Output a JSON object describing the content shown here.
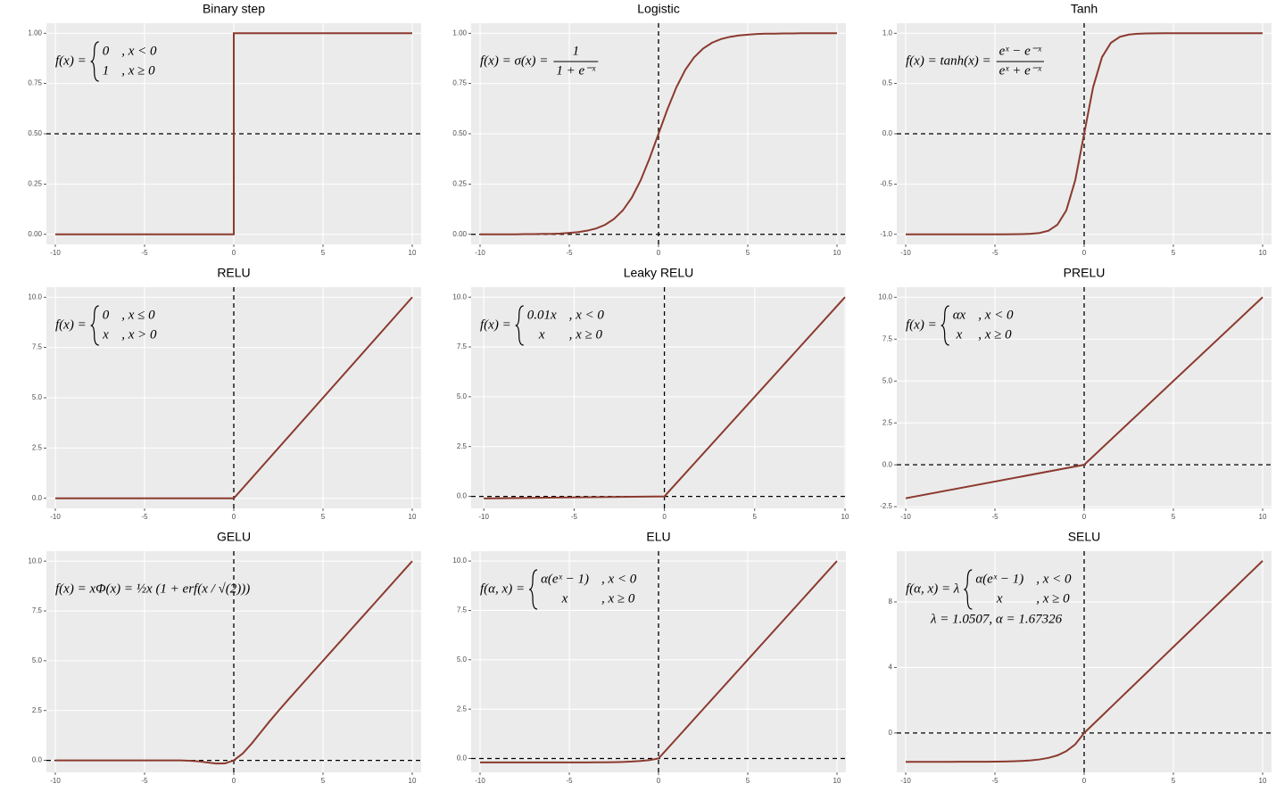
{
  "chart_data": [
    {
      "type": "line",
      "title": "Binary step",
      "color": "#8b3a2f",
      "xlim": [
        -10.5,
        10.5
      ],
      "ylim": [
        -0.05,
        1.05
      ],
      "xticks": [
        -10,
        -5,
        0,
        5,
        10
      ],
      "yticks": [
        {
          "value": 0,
          "label": "0.00"
        },
        {
          "value": 0.25,
          "label": "0.25"
        },
        {
          "value": 0.5,
          "label": "0.50"
        },
        {
          "value": 0.75,
          "label": "0.75"
        },
        {
          "value": 1,
          "label": "1.00"
        }
      ],
      "hlines": [
        0.5
      ],
      "vlines": [],
      "x": [
        -10,
        0,
        0,
        10
      ],
      "values": [
        0,
        0,
        1,
        1
      ],
      "annotation": {
        "lhs": "f(x) =",
        "cases": [
          [
            "0",
            ", x < 0"
          ],
          [
            "1",
            ", x ≥ 0"
          ]
        ]
      }
    },
    {
      "type": "line",
      "title": "Logistic",
      "color": "#8b3a2f",
      "xlim": [
        -10.5,
        10.5
      ],
      "ylim": [
        -0.05,
        1.05
      ],
      "xticks": [
        -10,
        -5,
        0,
        5,
        10
      ],
      "yticks": [
        {
          "value": 0,
          "label": "0.00"
        },
        {
          "value": 0.25,
          "label": "0.25"
        },
        {
          "value": 0.5,
          "label": "0.50"
        },
        {
          "value": 0.75,
          "label": "0.75"
        },
        {
          "value": 1,
          "label": "1.00"
        }
      ],
      "hlines": [
        0
      ],
      "vlines": [
        0
      ],
      "x": [
        -10,
        -9.5,
        -9,
        -8.5,
        -8,
        -7.5,
        -7,
        -6.5,
        -6,
        -5.5,
        -5,
        -4.5,
        -4,
        -3.5,
        -3,
        -2.5,
        -2,
        -1.5,
        -1,
        -0.5,
        0,
        0.5,
        1,
        1.5,
        2,
        2.5,
        3,
        3.5,
        4,
        4.5,
        5,
        5.5,
        6,
        6.5,
        7,
        7.5,
        8,
        8.5,
        9,
        9.5,
        10
      ],
      "values": [
        0,
        0,
        0,
        0,
        0,
        0.001,
        0.001,
        0.002,
        0.002,
        0.004,
        0.007,
        0.011,
        0.018,
        0.029,
        0.047,
        0.076,
        0.119,
        0.182,
        0.269,
        0.378,
        0.5,
        0.622,
        0.731,
        0.818,
        0.881,
        0.924,
        0.953,
        0.971,
        0.982,
        0.989,
        0.993,
        0.996,
        0.998,
        0.998,
        0.999,
        0.999,
        1,
        1,
        1,
        1,
        1
      ],
      "annotation": {
        "lhs": "f(x) = σ(x) =",
        "fraction": {
          "numerator": "1",
          "denominator": "1 + e⁻ˣ"
        }
      }
    },
    {
      "type": "line",
      "title": "Tanh",
      "color": "#8b3a2f",
      "xlim": [
        -10.5,
        10.5
      ],
      "ylim": [
        -1.1,
        1.1
      ],
      "xticks": [
        -10,
        -5,
        0,
        5,
        10
      ],
      "yticks": [
        {
          "value": -1,
          "label": "-1.0"
        },
        -0.5,
        {
          "value": 0,
          "label": "0.0"
        },
        0.5,
        {
          "value": 1,
          "label": "1.0"
        }
      ],
      "hlines": [
        0
      ],
      "vlines": [
        0
      ],
      "x": [
        -10,
        -9.5,
        -9,
        -8.5,
        -8,
        -7.5,
        -7,
        -6.5,
        -6,
        -5.5,
        -5,
        -4.5,
        -4,
        -3.5,
        -3,
        -2.5,
        -2,
        -1.5,
        -1,
        -0.5,
        0,
        0.5,
        1,
        1.5,
        2,
        2.5,
        3,
        3.5,
        4,
        4.5,
        5,
        5.5,
        6,
        6.5,
        7,
        7.5,
        8,
        8.5,
        9,
        9.5,
        10
      ],
      "values": [
        -1,
        -1,
        -1,
        -1,
        -1,
        -1,
        -1,
        -1,
        -1,
        -1,
        -1,
        -1,
        -0.999,
        -0.998,
        -0.995,
        -0.987,
        -0.964,
        -0.905,
        -0.762,
        -0.462,
        0,
        0.462,
        0.762,
        0.905,
        0.964,
        0.987,
        0.995,
        0.998,
        0.999,
        1,
        1,
        1,
        1,
        1,
        1,
        1,
        1,
        1,
        1,
        1,
        1
      ],
      "annotation": {
        "lhs": "f(x) = tanh(x) =",
        "fraction": {
          "numerator": "eˣ − e⁻ˣ",
          "denominator": "eˣ + e⁻ˣ"
        }
      }
    },
    {
      "type": "line",
      "title": "RELU",
      "color": "#8b3a2f",
      "xlim": [
        -10.5,
        10.5
      ],
      "ylim": [
        -0.5,
        10.5
      ],
      "xticks": [
        -10,
        -5,
        0,
        5,
        10
      ],
      "yticks": [
        {
          "value": 0,
          "label": "0.0"
        },
        2.5,
        {
          "value": 5,
          "label": "5.0"
        },
        7.5,
        {
          "value": 10,
          "label": "10.0"
        }
      ],
      "hlines": [],
      "vlines": [
        0
      ],
      "x": [
        -10,
        0,
        10
      ],
      "values": [
        0,
        0,
        10
      ],
      "annotation": {
        "lhs": "f(x) =",
        "cases": [
          [
            "0",
            ", x ≤ 0"
          ],
          [
            "x",
            ", x > 0"
          ]
        ]
      }
    },
    {
      "type": "line",
      "title": "Leaky RELU",
      "color": "#8b3a2f",
      "xlim": [
        -10.7,
        10.05
      ],
      "ylim": [
        -0.6,
        10.5
      ],
      "xticks": [
        -10,
        -5,
        0,
        5,
        10
      ],
      "yticks": [
        {
          "value": 0,
          "label": "0.0"
        },
        2.5,
        {
          "value": 5,
          "label": "5.0"
        },
        7.5,
        {
          "value": 10,
          "label": "10.0"
        }
      ],
      "hlines": [
        0
      ],
      "vlines": [
        0
      ],
      "x": [
        -10,
        0,
        10
      ],
      "values": [
        -0.1,
        0,
        10
      ],
      "annotation": {
        "lhs": "f(x) =",
        "cases": [
          [
            "0.01x",
            ", x < 0"
          ],
          [
            "x",
            ", x ≥ 0"
          ]
        ]
      }
    },
    {
      "type": "line",
      "title": "PRELU",
      "color": "#8b3a2f",
      "xlim": [
        -10.5,
        10.5
      ],
      "ylim": [
        -2.6,
        10.6
      ],
      "xticks": [
        -10,
        -5,
        0,
        5,
        10
      ],
      "yticks": [
        -2.5,
        {
          "value": 0,
          "label": "0.0"
        },
        2.5,
        {
          "value": 5,
          "label": "5.0"
        },
        7.5,
        {
          "value": 10,
          "label": "10.0"
        }
      ],
      "hlines": [
        0
      ],
      "vlines": [
        0
      ],
      "x": [
        -10,
        0,
        10
      ],
      "values": [
        -2,
        0,
        10
      ],
      "annotation": {
        "lhs": "f(x) =",
        "cases": [
          [
            "αx",
            ", x < 0"
          ],
          [
            "x",
            ", x ≥ 0"
          ]
        ]
      }
    },
    {
      "type": "line",
      "title": "GELU",
      "color": "#8b3a2f",
      "xlim": [
        -10.5,
        10.5
      ],
      "ylim": [
        -0.6,
        10.5
      ],
      "xticks": [
        -10,
        -5,
        0,
        5,
        10
      ],
      "yticks": [
        {
          "value": 0,
          "label": "0.0"
        },
        2.5,
        {
          "value": 5,
          "label": "5.0"
        },
        7.5,
        {
          "value": 10,
          "label": "10.0"
        }
      ],
      "hlines": [
        0
      ],
      "vlines": [
        0
      ],
      "x": [
        -10,
        -9.5,
        -9,
        -8.5,
        -8,
        -7.5,
        -7,
        -6.5,
        -6,
        -5.5,
        -5,
        -4.5,
        -4,
        -3.5,
        -3,
        -2.5,
        -2,
        -1.5,
        -1,
        -0.5,
        0,
        0.5,
        1,
        1.5,
        2,
        2.5,
        3,
        3.5,
        4,
        4.5,
        5,
        5.5,
        6,
        6.5,
        7,
        7.5,
        8,
        8.5,
        9,
        9.5,
        10
      ],
      "values": [
        0,
        0,
        0,
        0,
        0,
        0,
        0,
        0,
        0,
        0,
        0,
        0,
        0,
        -0.001,
        -0.004,
        -0.016,
        -0.046,
        -0.1,
        -0.159,
        -0.154,
        0,
        0.346,
        0.841,
        1.4,
        1.954,
        2.484,
        2.996,
        3.499,
        4,
        4.5,
        5,
        5.5,
        6,
        6.5,
        7,
        7.5,
        8,
        8.5,
        9,
        9.5,
        10
      ],
      "annotation": {
        "text": "f(x) = xΦ(x) = ½x (1 + erf(x / √(2)))"
      }
    },
    {
      "type": "line",
      "title": "ELU",
      "color": "#8b3a2f",
      "xlim": [
        -10.5,
        10.5
      ],
      "ylim": [
        -0.7,
        10.5
      ],
      "xticks": [
        -10,
        -5,
        0,
        5,
        10
      ],
      "yticks": [
        {
          "value": 0,
          "label": "0.0"
        },
        2.5,
        {
          "value": 5,
          "label": "5.0"
        },
        7.5,
        {
          "value": 10,
          "label": "10.0"
        }
      ],
      "hlines": [
        0
      ],
      "vlines": [
        0
      ],
      "x": [
        -10,
        -9.5,
        -9,
        -8.5,
        -8,
        -7.5,
        -7,
        -6.5,
        -6,
        -5.5,
        -5,
        -4.5,
        -4,
        -3.5,
        -3,
        -2.5,
        -2,
        -1.5,
        -1,
        -0.5,
        0,
        0.5,
        1,
        1.5,
        2,
        2.5,
        3,
        3.5,
        4,
        4.5,
        5,
        5.5,
        6,
        6.5,
        7,
        7.5,
        8,
        8.5,
        9,
        9.5,
        10
      ],
      "values": [
        -0.2,
        -0.2,
        -0.2,
        -0.2,
        -0.2,
        -0.2,
        -0.2,
        -0.2,
        -0.2,
        -0.199,
        -0.199,
        -0.198,
        -0.196,
        -0.194,
        -0.19,
        -0.184,
        -0.173,
        -0.155,
        -0.126,
        -0.079,
        0,
        0.5,
        1,
        1.5,
        2,
        2.5,
        3,
        3.5,
        4,
        4.5,
        5,
        5.5,
        6,
        6.5,
        7,
        7.5,
        8,
        8.5,
        9,
        9.5,
        10
      ],
      "annotation": {
        "lhs": "f(α, x) =",
        "cases": [
          [
            "α(eˣ − 1)",
            ", x < 0"
          ],
          [
            "x",
            ", x ≥ 0"
          ]
        ]
      }
    },
    {
      "type": "line",
      "title": "SELU",
      "color": "#8b3a2f",
      "xlim": [
        -10.5,
        10.5
      ],
      "ylim": [
        -2.4,
        11.1
      ],
      "xticks": [
        -10,
        -5,
        0,
        5,
        10
      ],
      "yticks": [
        0,
        4,
        8
      ],
      "hlines": [
        0
      ],
      "vlines": [
        0
      ],
      "x": [
        -10,
        -9.5,
        -9,
        -8.5,
        -8,
        -7.5,
        -7,
        -6.5,
        -6,
        -5.5,
        -5,
        -4.5,
        -4,
        -3.5,
        -3,
        -2.5,
        -2,
        -1.5,
        -1,
        -0.5,
        0,
        0.5,
        1,
        1.5,
        2,
        2.5,
        3,
        3.5,
        4,
        4.5,
        5,
        5.5,
        6,
        6.5,
        7,
        7.5,
        8,
        8.5,
        9,
        9.5,
        10
      ],
      "values": [
        -1.758,
        -1.758,
        -1.758,
        -1.758,
        -1.757,
        -1.757,
        -1.756,
        -1.755,
        -1.754,
        -1.751,
        -1.746,
        -1.739,
        -1.726,
        -1.705,
        -1.671,
        -1.614,
        -1.52,
        -1.366,
        -1.111,
        -0.692,
        0,
        0.525,
        1.051,
        1.576,
        2.101,
        2.627,
        3.152,
        3.677,
        4.203,
        4.728,
        5.254,
        5.779,
        6.304,
        6.83,
        7.355,
        7.88,
        8.406,
        8.931,
        9.456,
        9.982,
        10.507
      ],
      "annotation": {
        "lhs": "f(α, x) = λ",
        "cases": [
          [
            "α(eˣ − 1)",
            ", x < 0"
          ],
          [
            "x",
            ", x ≥ 0"
          ]
        ],
        "note": "λ = 1.0507,  α = 1.67326"
      }
    }
  ]
}
